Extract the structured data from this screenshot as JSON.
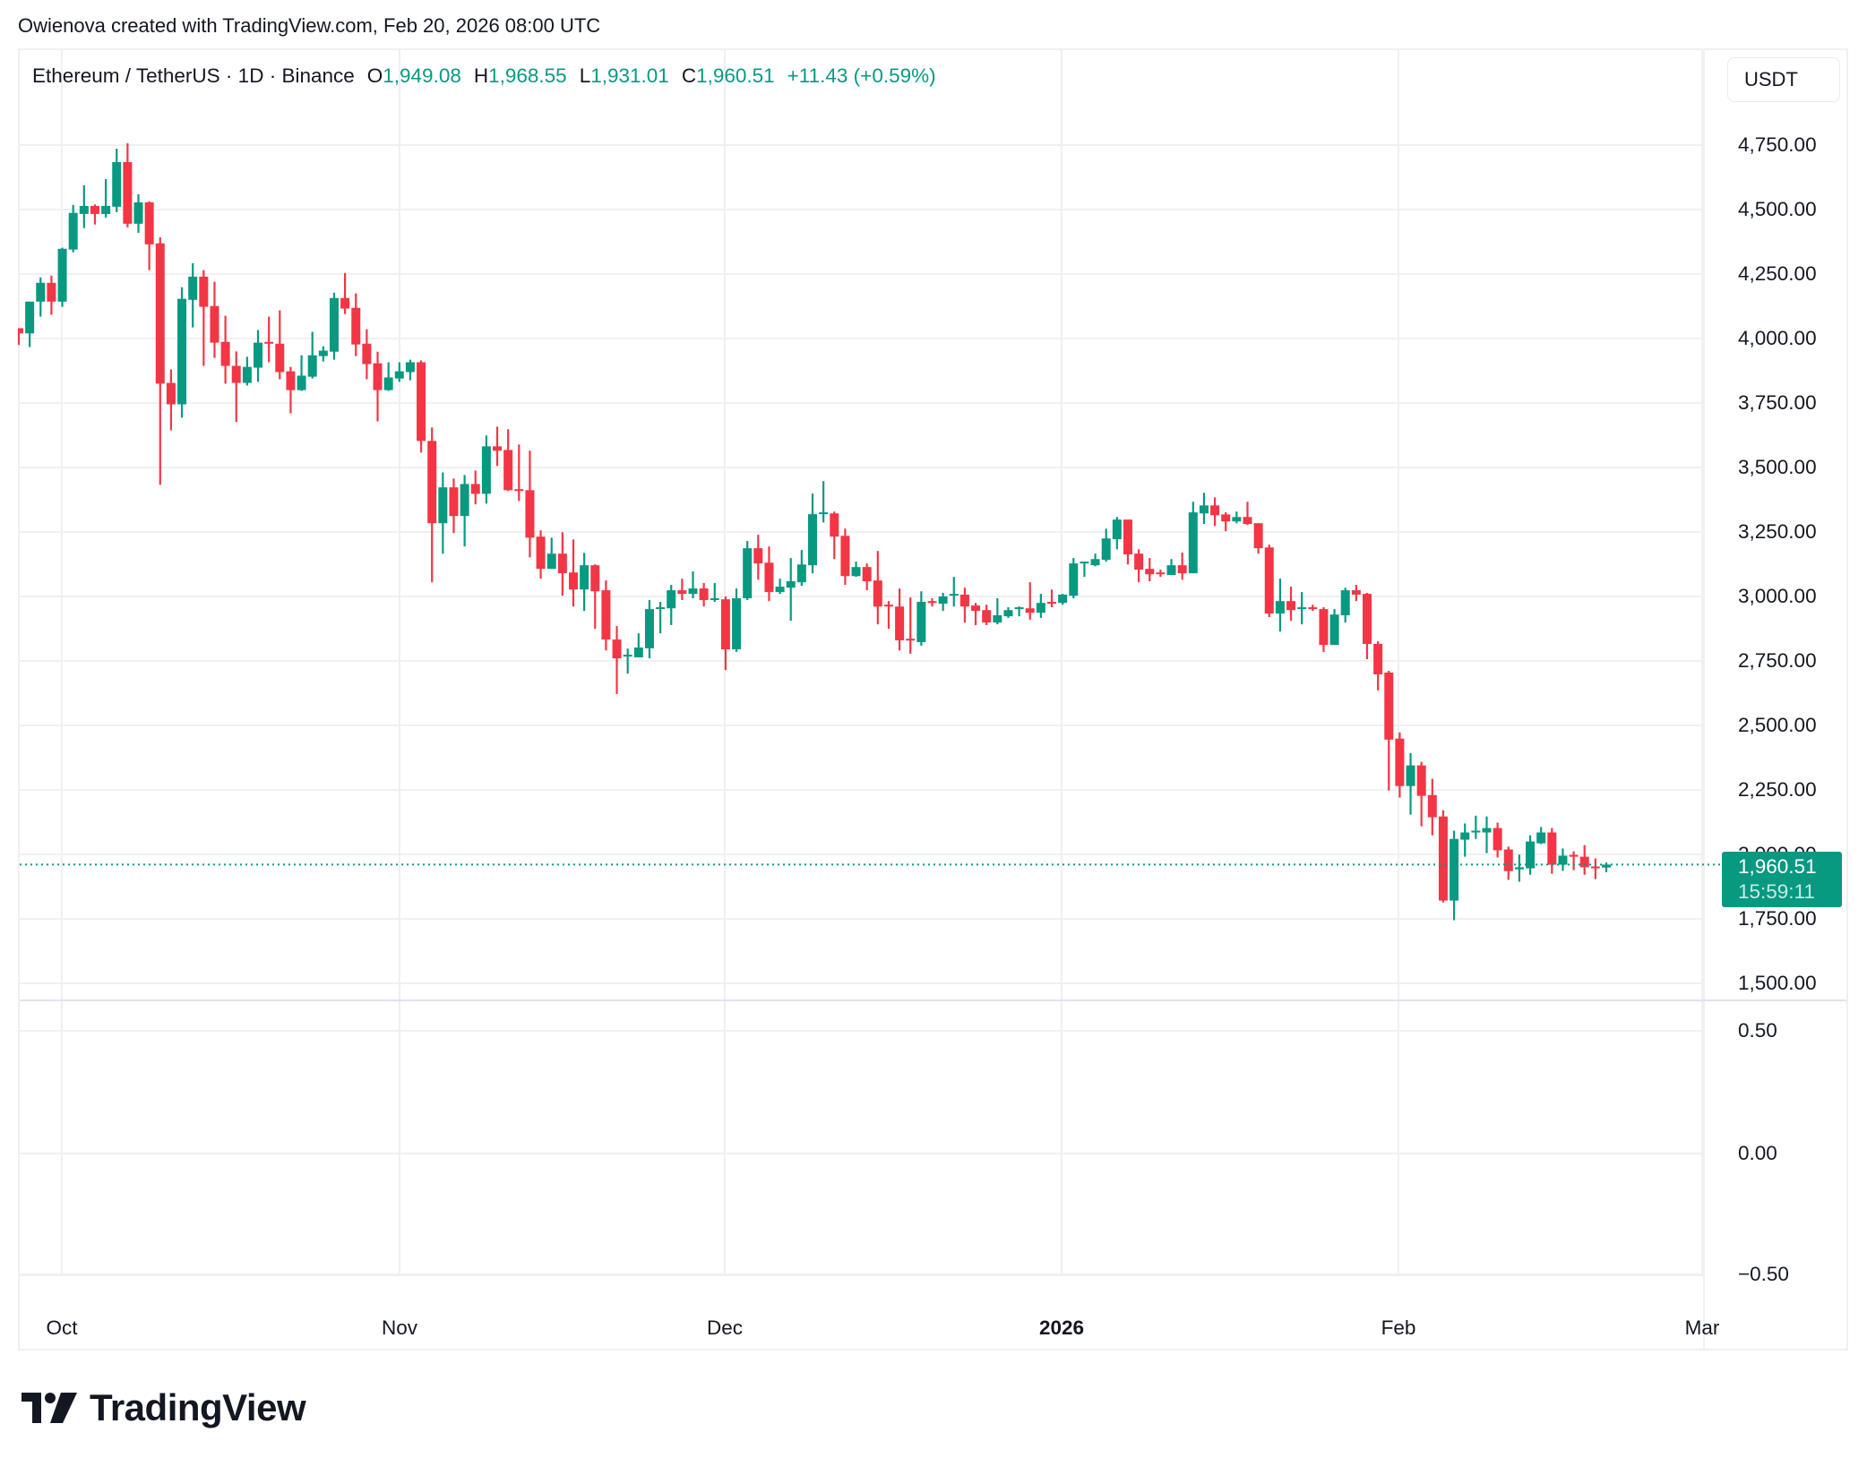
{
  "header": {
    "credit": "Owienova created with TradingView.com, Feb 20, 2026 08:00 UTC"
  },
  "legend": {
    "symbol": "Ethereum / TetherUS · 1D · Binance",
    "open_label": "O",
    "open": "1,949.08",
    "high_label": "H",
    "high": "1,968.55",
    "low_label": "L",
    "low": "1,931.01",
    "close_label": "C",
    "close": "1,960.51",
    "change": "+11.43 (+0.59%)"
  },
  "price_axis": {
    "currency": "USDT",
    "ticks": [
      "4,750.00",
      "4,500.00",
      "4,250.00",
      "4,000.00",
      "3,750.00",
      "3,500.00",
      "3,250.00",
      "3,000.00",
      "2,750.00",
      "2,500.00",
      "2,250.00",
      "2,000.00",
      "1,750.00",
      "1,500.00"
    ],
    "last_price": "1,960.51",
    "countdown": "15:59:11"
  },
  "oscillator_axis": {
    "ticks": [
      "0.50",
      "0.00",
      "−0.50"
    ]
  },
  "time_axis": {
    "labels": [
      "Oct",
      "Nov",
      "Dec",
      "2026",
      "Feb",
      "Mar"
    ]
  },
  "branding": {
    "logo_text": "TradingView"
  },
  "colors": {
    "up": "#089981",
    "down": "#f23645",
    "grid": "#f0f0f0",
    "text": "#131722"
  },
  "chart_data": {
    "type": "candlestick",
    "title": "Ethereum / TetherUS · 1D · Binance",
    "xlabel": "",
    "ylabel": "USDT",
    "ylim": [
      1500,
      4750
    ],
    "grid": true,
    "start_date": "2025-09-27",
    "end_date": "2026-02-20",
    "interval": "1D",
    "x_ticks": [
      "Oct",
      "Nov",
      "Dec",
      "2026",
      "Feb",
      "Mar"
    ],
    "y_ticks": [
      4750,
      4500,
      4250,
      4000,
      3750,
      3500,
      3250,
      3000,
      2750,
      2500,
      2250,
      2000,
      1750,
      1500
    ],
    "last": {
      "open": 1949.08,
      "high": 1968.55,
      "low": 1931.01,
      "close": 1960.51,
      "change": 11.43,
      "change_pct": 0.59
    },
    "oscillator_pane": {
      "y_ticks": [
        0.5,
        0.0,
        -0.5
      ]
    },
    "ohlc": [
      [
        4040,
        4040,
        3975,
        4020
      ],
      [
        4020,
        4143,
        3967,
        4143
      ],
      [
        4143,
        4237,
        4085,
        4216
      ],
      [
        4216,
        4244,
        4092,
        4143
      ],
      [
        4143,
        4352,
        4123,
        4348
      ],
      [
        4345,
        4518,
        4334,
        4487
      ],
      [
        4483,
        4594,
        4428,
        4514
      ],
      [
        4514,
        4520,
        4442,
        4483
      ],
      [
        4483,
        4618,
        4469,
        4514
      ],
      [
        4511,
        4736,
        4490,
        4684
      ],
      [
        4684,
        4757,
        4431,
        4445
      ],
      [
        4445,
        4559,
        4410,
        4528
      ],
      [
        4528,
        4532,
        4265,
        4365
      ],
      [
        4369,
        4393,
        3433,
        3825
      ],
      [
        3828,
        3880,
        3644,
        3745
      ],
      [
        3745,
        4199,
        3693,
        4154
      ],
      [
        4150,
        4292,
        4043,
        4240
      ],
      [
        4240,
        4265,
        3894,
        4123
      ],
      [
        4126,
        4220,
        3925,
        3984
      ],
      [
        3987,
        4088,
        3825,
        3894
      ],
      [
        3894,
        3950,
        3676,
        3828
      ],
      [
        3828,
        3929,
        3818,
        3890
      ],
      [
        3887,
        4033,
        3832,
        3984
      ],
      [
        3987,
        4085,
        3908,
        3980
      ],
      [
        3980,
        4109,
        3842,
        3870
      ],
      [
        3873,
        3890,
        3710,
        3800
      ],
      [
        3800,
        3935,
        3797,
        3856
      ],
      [
        3852,
        4026,
        3845,
        3935
      ],
      [
        3932,
        3970,
        3911,
        3953
      ],
      [
        3949,
        4178,
        3918,
        4157
      ],
      [
        4157,
        4254,
        4095,
        4116
      ],
      [
        4119,
        4175,
        3932,
        3977
      ],
      [
        3980,
        4036,
        3842,
        3901
      ],
      [
        3904,
        3949,
        3679,
        3800
      ],
      [
        3800,
        3908,
        3797,
        3849
      ],
      [
        3845,
        3908,
        3832,
        3873
      ],
      [
        3870,
        3918,
        3838,
        3908
      ],
      [
        3908,
        3915,
        3558,
        3603
      ],
      [
        3603,
        3655,
        3055,
        3284
      ],
      [
        3284,
        3481,
        3166,
        3423
      ],
      [
        3423,
        3457,
        3246,
        3312
      ],
      [
        3312,
        3471,
        3194,
        3436
      ],
      [
        3436,
        3488,
        3357,
        3398
      ],
      [
        3398,
        3624,
        3360,
        3582
      ],
      [
        3582,
        3658,
        3506,
        3565
      ],
      [
        3568,
        3648,
        3409,
        3412
      ],
      [
        3416,
        3589,
        3370,
        3409
      ],
      [
        3412,
        3565,
        3152,
        3228
      ],
      [
        3232,
        3256,
        3069,
        3107
      ],
      [
        3107,
        3228,
        3107,
        3166
      ],
      [
        3166,
        3249,
        3003,
        3090
      ],
      [
        3093,
        3221,
        2961,
        3027
      ],
      [
        3027,
        3169,
        2944,
        3121
      ],
      [
        3121,
        3124,
        2875,
        3020
      ],
      [
        3024,
        3062,
        2791,
        2833
      ],
      [
        2833,
        2885,
        2622,
        2760
      ],
      [
        2767,
        2798,
        2701,
        2774
      ],
      [
        2764,
        2857,
        2764,
        2802
      ],
      [
        2799,
        2986,
        2760,
        2951
      ],
      [
        2951,
        2979,
        2857,
        2958
      ],
      [
        2954,
        3045,
        2889,
        3024
      ],
      [
        3024,
        3069,
        2986,
        3010
      ],
      [
        3010,
        3097,
        2993,
        3031
      ],
      [
        3031,
        3052,
        2961,
        2986
      ],
      [
        2986,
        3052,
        2979,
        2993
      ],
      [
        2989,
        3000,
        2715,
        2795
      ],
      [
        2795,
        3031,
        2785,
        2993
      ],
      [
        2993,
        3215,
        2986,
        3187
      ],
      [
        3187,
        3239,
        3065,
        3128
      ],
      [
        3131,
        3194,
        2982,
        3017
      ],
      [
        3017,
        3069,
        3010,
        3038
      ],
      [
        3034,
        3149,
        2906,
        3059
      ],
      [
        3055,
        3180,
        3041,
        3124
      ],
      [
        3121,
        3399,
        3090,
        3319
      ],
      [
        3319,
        3447,
        3287,
        3326
      ],
      [
        3322,
        3329,
        3145,
        3232
      ],
      [
        3235,
        3263,
        3045,
        3079
      ],
      [
        3079,
        3135,
        3076,
        3114
      ],
      [
        3114,
        3128,
        3024,
        3059
      ],
      [
        3062,
        3176,
        2892,
        2961
      ],
      [
        2968,
        2982,
        2875,
        2961
      ],
      [
        2961,
        3031,
        2791,
        2830
      ],
      [
        2836,
        2996,
        2778,
        2830
      ],
      [
        2823,
        3020,
        2809,
        2979
      ],
      [
        2982,
        2993,
        2961,
        2975
      ],
      [
        2972,
        3014,
        2944,
        3000
      ],
      [
        3003,
        3076,
        2961,
        3010
      ],
      [
        3007,
        3034,
        2899,
        2961
      ],
      [
        2965,
        2975,
        2889,
        2944
      ],
      [
        2947,
        2968,
        2889,
        2899
      ],
      [
        2899,
        2993,
        2892,
        2927
      ],
      [
        2923,
        2958,
        2917,
        2947
      ],
      [
        2951,
        2961,
        2923,
        2958
      ],
      [
        2954,
        3055,
        2910,
        2937
      ],
      [
        2937,
        3010,
        2917,
        2975
      ],
      [
        2979,
        3027,
        2958,
        2972
      ],
      [
        2975,
        3010,
        2968,
        3007
      ],
      [
        3003,
        3149,
        2993,
        3128
      ],
      [
        3128,
        3135,
        3076,
        3135
      ],
      [
        3121,
        3166,
        3117,
        3145
      ],
      [
        3142,
        3263,
        3135,
        3225
      ],
      [
        3222,
        3308,
        3183,
        3298
      ],
      [
        3298,
        3298,
        3124,
        3163
      ],
      [
        3166,
        3183,
        3055,
        3104
      ],
      [
        3107,
        3149,
        3059,
        3086
      ],
      [
        3093,
        3104,
        3076,
        3086
      ],
      [
        3083,
        3145,
        3083,
        3121
      ],
      [
        3121,
        3170,
        3065,
        3090
      ],
      [
        3090,
        3367,
        3090,
        3326
      ],
      [
        3322,
        3402,
        3281,
        3353
      ],
      [
        3353,
        3384,
        3273,
        3315
      ],
      [
        3318,
        3326,
        3253,
        3291
      ],
      [
        3291,
        3329,
        3284,
        3308
      ],
      [
        3308,
        3367,
        3277,
        3281
      ],
      [
        3284,
        3284,
        3166,
        3187
      ],
      [
        3190,
        3201,
        2920,
        2934
      ],
      [
        2934,
        3069,
        2864,
        2982
      ],
      [
        2982,
        3038,
        2906,
        2947
      ],
      [
        2951,
        3017,
        2892,
        2958
      ],
      [
        2958,
        2968,
        2944,
        2951
      ],
      [
        2951,
        2958,
        2785,
        2812
      ],
      [
        2812,
        2951,
        2812,
        2930
      ],
      [
        2927,
        3034,
        2899,
        3024
      ],
      [
        3024,
        3045,
        2982,
        3007
      ],
      [
        3010,
        3014,
        2757,
        2816
      ],
      [
        2816,
        2826,
        2636,
        2698
      ],
      [
        2705,
        2712,
        2248,
        2445
      ],
      [
        2449,
        2473,
        2220,
        2265
      ],
      [
        2265,
        2393,
        2154,
        2345
      ],
      [
        2345,
        2359,
        2109,
        2227
      ],
      [
        2230,
        2293,
        2074,
        2144
      ],
      [
        2147,
        2171,
        1814,
        1821
      ],
      [
        1821,
        2092,
        1745,
        2060
      ],
      [
        2057,
        2120,
        1991,
        2085
      ],
      [
        2085,
        2150,
        2060,
        2092
      ],
      [
        2085,
        2147,
        2005,
        2102
      ],
      [
        2102,
        2123,
        1988,
        2016
      ],
      [
        2019,
        2030,
        1901,
        1935
      ],
      [
        1942,
        1999,
        1894,
        1950
      ],
      [
        1946,
        2074,
        1921,
        2050
      ],
      [
        2043,
        2106,
        2040,
        2085
      ],
      [
        2085,
        2102,
        1925,
        1960
      ],
      [
        1960,
        2023,
        1936,
        1995
      ],
      [
        1998,
        2012,
        1939,
        1991
      ],
      [
        1991,
        2036,
        1921,
        1950
      ],
      [
        1953,
        1984,
        1904,
        1946
      ],
      [
        1949.08,
        1968.55,
        1931.01,
        1960.51
      ]
    ]
  }
}
